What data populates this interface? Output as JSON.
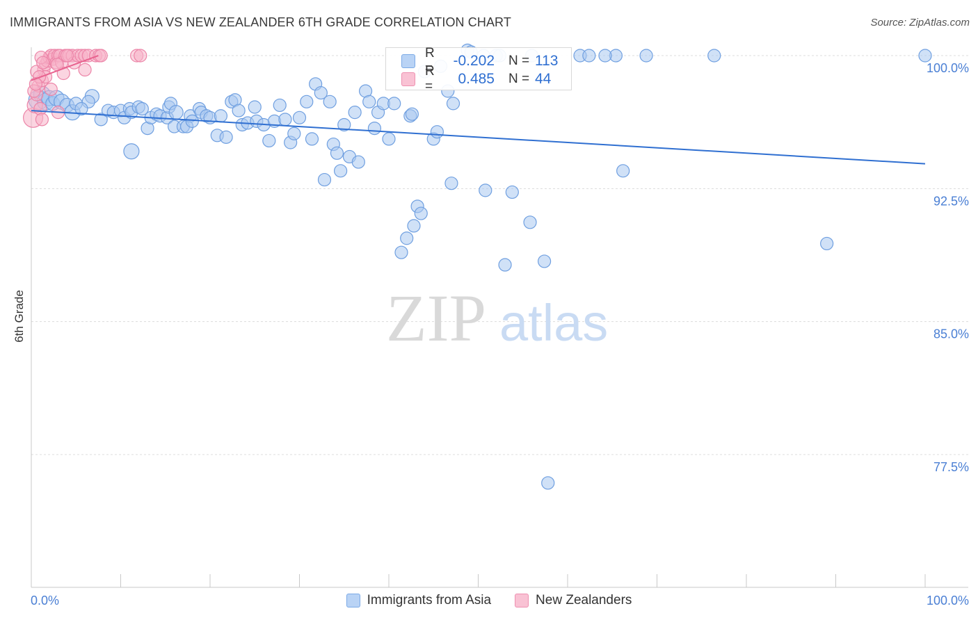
{
  "title": "IMMIGRANTS FROM ASIA VS NEW ZEALANDER 6TH GRADE CORRELATION CHART",
  "source": "Source: ZipAtlas.com",
  "watermark": {
    "zip": "ZIP",
    "atlas": "atlas"
  },
  "stats": {
    "blue": {
      "r_label": "R =",
      "r_value": "-0.202",
      "n_label": "N =",
      "n_value": "113"
    },
    "pink": {
      "r_label": "R =",
      "r_value": "0.485",
      "n_label": "N =",
      "n_value": "44"
    }
  },
  "legend": {
    "blue": "Immigrants from Asia",
    "pink": "New Zealanders"
  },
  "colors": {
    "blue_fill": "#a9c8f0",
    "blue_stroke": "#6f9fe0",
    "blue_line": "#2f6fd1",
    "pink_fill": "#f7b3c8",
    "pink_stroke": "#ec85a8",
    "pink_line": "#e8638f",
    "tick_label": "#4a7fd4"
  },
  "chart_data": {
    "type": "scatter",
    "xlabel": "",
    "ylabel": "6th Grade",
    "xlim": [
      0,
      100
    ],
    "ylim": [
      70,
      101
    ],
    "x_tick_labels": [
      "0.0%",
      "100.0%"
    ],
    "y_ticks": [
      100,
      92.5,
      85,
      77.5
    ],
    "y_tick_labels": [
      "100.0%",
      "92.5%",
      "85.0%",
      "77.5%"
    ],
    "series": [
      {
        "name": "Immigrants from Asia",
        "trend": {
          "x": [
            0,
            100
          ],
          "y": [
            96.9,
            93.9
          ]
        },
        "points": [
          [
            0.8,
            97.5,
            14
          ],
          [
            1.2,
            97.8,
            12
          ],
          [
            1.6,
            97.4,
            12
          ],
          [
            2,
            97.6,
            11
          ],
          [
            2.4,
            97.3,
            10
          ],
          [
            2.8,
            97.6,
            11
          ],
          [
            3.4,
            97.4,
            11
          ],
          [
            4,
            97.2,
            10
          ],
          [
            4.6,
            96.8,
            11
          ],
          [
            5,
            97.3,
            9
          ],
          [
            6.8,
            97.7,
            10
          ],
          [
            6.4,
            97.4,
            9
          ],
          [
            5.6,
            97,
            9
          ],
          [
            7.8,
            96.4,
            9
          ],
          [
            8.6,
            96.9,
            9
          ],
          [
            9.2,
            96.8,
            9
          ],
          [
            10,
            96.9,
            9
          ],
          [
            10.4,
            96.5,
            9
          ],
          [
            11,
            97,
            9
          ],
          [
            11.2,
            94.6,
            11
          ],
          [
            11.2,
            96.8,
            9
          ],
          [
            12,
            97.1,
            9
          ],
          [
            12.4,
            97,
            9
          ],
          [
            13,
            95.9,
            9
          ],
          [
            13.4,
            96.5,
            9
          ],
          [
            14,
            96.7,
            9
          ],
          [
            14.4,
            96.6,
            9
          ],
          [
            15.2,
            96.5,
            9
          ],
          [
            15.4,
            97.1,
            9
          ],
          [
            15.6,
            97.3,
            9
          ],
          [
            16,
            96,
            9
          ],
          [
            16.2,
            96.8,
            10
          ],
          [
            17,
            96,
            9
          ],
          [
            17.4,
            96,
            9
          ],
          [
            17.8,
            96.6,
            9
          ],
          [
            18,
            96.3,
            9
          ],
          [
            18.8,
            97,
            9
          ],
          [
            19,
            96.8,
            9
          ],
          [
            19.6,
            96.6,
            9
          ],
          [
            20,
            96.5,
            9
          ],
          [
            20.8,
            95.5,
            9
          ],
          [
            21.2,
            96.6,
            9
          ],
          [
            21.8,
            95.4,
            9
          ],
          [
            22.4,
            97.4,
            9
          ],
          [
            22.8,
            97.5,
            9
          ],
          [
            23.2,
            96.9,
            9
          ],
          [
            23.6,
            96.1,
            9
          ],
          [
            24.2,
            96.2,
            9
          ],
          [
            25,
            97.1,
            9
          ],
          [
            25.2,
            96.3,
            9
          ],
          [
            26,
            96.1,
            9
          ],
          [
            26.6,
            95.2,
            9
          ],
          [
            27.2,
            96.3,
            9
          ],
          [
            27.8,
            97.2,
            9
          ],
          [
            28.4,
            96.4,
            9
          ],
          [
            29,
            95.1,
            9
          ],
          [
            29.4,
            95.6,
            9
          ],
          [
            30,
            96.5,
            9
          ],
          [
            30.8,
            97.4,
            9
          ],
          [
            31.4,
            95.3,
            9
          ],
          [
            31.8,
            98.4,
            9
          ],
          [
            32.4,
            97.9,
            9
          ],
          [
            32.8,
            93,
            9
          ],
          [
            33.4,
            97.4,
            9
          ],
          [
            33.8,
            95,
            9
          ],
          [
            34.2,
            94.5,
            9
          ],
          [
            34.6,
            93.5,
            9
          ],
          [
            35,
            96.1,
            9
          ],
          [
            35.6,
            94.3,
            9
          ],
          [
            36.2,
            96.8,
            9
          ],
          [
            36.6,
            94,
            9
          ],
          [
            37.4,
            98,
            9
          ],
          [
            37.8,
            97.4,
            9
          ],
          [
            38.4,
            95.9,
            9
          ],
          [
            38.8,
            96.8,
            9
          ],
          [
            39.4,
            97.3,
            9
          ],
          [
            40,
            95.3,
            9
          ],
          [
            40.6,
            97.3,
            9
          ],
          [
            42.4,
            96.6,
            9
          ],
          [
            42.6,
            96.7,
            9
          ],
          [
            41.4,
            88.9,
            9
          ],
          [
            42,
            89.7,
            9
          ],
          [
            42.8,
            90.4,
            9
          ],
          [
            43.2,
            91.5,
            9
          ],
          [
            43.6,
            91.1,
            9
          ],
          [
            45,
            95.3,
            9
          ],
          [
            45.4,
            95.7,
            9
          ],
          [
            46.6,
            98,
            9
          ],
          [
            47.2,
            97.3,
            9
          ],
          [
            47,
            92.8,
            9
          ],
          [
            44,
            99.1,
            9
          ],
          [
            45.8,
            99.4,
            9
          ],
          [
            48.8,
            100.3,
            9
          ],
          [
            49.2,
            100.2,
            9
          ],
          [
            50.6,
            100,
            9
          ],
          [
            52,
            100,
            9
          ],
          [
            50.8,
            92.4,
            9
          ],
          [
            52.4,
            100,
            9
          ],
          [
            53,
            88.2,
            9
          ],
          [
            53.8,
            92.3,
            9
          ],
          [
            55.8,
            90.6,
            9
          ],
          [
            57.4,
            88.4,
            9
          ],
          [
            57.8,
            75.9,
            9
          ],
          [
            61.4,
            100,
            9
          ],
          [
            62.4,
            100,
            9
          ],
          [
            65.4,
            100,
            9
          ],
          [
            66.2,
            93.5,
            9
          ],
          [
            68.8,
            100,
            9
          ],
          [
            76.4,
            100,
            9
          ],
          [
            89,
            89.4,
            9
          ],
          [
            100,
            100,
            9
          ],
          [
            64.2,
            100,
            9
          ],
          [
            56,
            100,
            9
          ]
        ]
      },
      {
        "name": "New Zealanders",
        "trend": {
          "x": [
            0,
            7.5
          ],
          "y": [
            98.6,
            100
          ]
        },
        "points": [
          [
            0.2,
            96.5,
            14
          ],
          [
            0.4,
            97.2,
            11
          ],
          [
            0.6,
            97.8,
            9
          ],
          [
            0.8,
            98.3,
            9
          ],
          [
            1,
            97,
            9
          ],
          [
            1.2,
            98.6,
            9
          ],
          [
            1.4,
            99.2,
            9
          ],
          [
            1.6,
            99.5,
            9
          ],
          [
            1.8,
            99.7,
            9
          ],
          [
            2,
            99.9,
            9
          ],
          [
            2.2,
            100,
            9
          ],
          [
            2.4,
            99.8,
            9
          ],
          [
            2.6,
            100,
            9
          ],
          [
            2.8,
            99.6,
            9
          ],
          [
            3,
            100,
            9
          ],
          [
            3.2,
            100,
            9
          ],
          [
            3.4,
            99.6,
            9
          ],
          [
            3.8,
            100,
            9
          ],
          [
            4.2,
            100,
            9
          ],
          [
            4.6,
            100,
            9
          ],
          [
            4.8,
            99.6,
            9
          ],
          [
            5.2,
            100,
            9
          ],
          [
            5.6,
            100,
            9
          ],
          [
            6,
            100,
            9
          ],
          [
            6.4,
            100,
            9
          ],
          [
            7.2,
            100,
            9
          ],
          [
            7.6,
            100,
            9
          ],
          [
            7.8,
            100,
            9
          ],
          [
            11.8,
            100,
            9
          ],
          [
            12.2,
            100,
            9
          ],
          [
            1.2,
            96.4,
            9
          ],
          [
            1.6,
            98.8,
            9
          ],
          [
            2.2,
            98.1,
            9
          ],
          [
            3,
            96.8,
            9
          ],
          [
            3.6,
            99,
            9
          ],
          [
            0.6,
            99.1,
            9
          ],
          [
            0.9,
            98.8,
            9
          ],
          [
            1.1,
            99.9,
            9
          ],
          [
            2.9,
            99.5,
            9
          ],
          [
            6,
            99.2,
            9
          ],
          [
            0.3,
            98,
            9
          ],
          [
            0.5,
            98.4,
            9
          ],
          [
            1.3,
            99.6,
            9
          ],
          [
            4,
            100,
            9
          ]
        ]
      }
    ]
  }
}
